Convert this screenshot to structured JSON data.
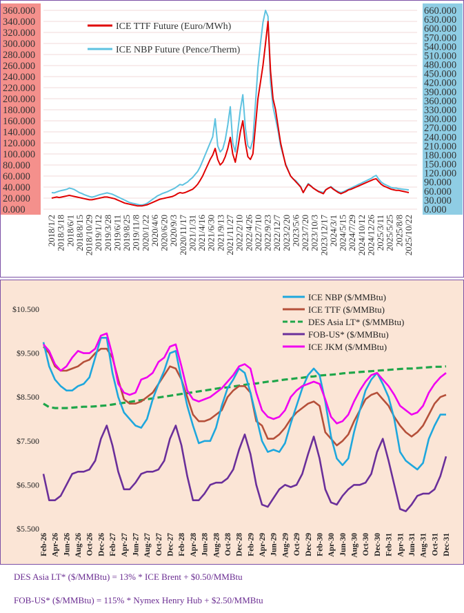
{
  "chart_data": [
    {
      "type": "line",
      "title": "",
      "series": [
        {
          "name": "ICE TTF Future (Euro/MWh)",
          "color": "#e00000",
          "axis": "left",
          "values": [
            20,
            21,
            22,
            21,
            22,
            23,
            24,
            25,
            24,
            23,
            22,
            21,
            20,
            19,
            18,
            17,
            17,
            18,
            19,
            20,
            21,
            22,
            22,
            21,
            20,
            19,
            17,
            15,
            13,
            11,
            10,
            9,
            8,
            7,
            6,
            6,
            6,
            7,
            8,
            10,
            12,
            14,
            16,
            18,
            19,
            20,
            21,
            22,
            23,
            25,
            28,
            30,
            29,
            30,
            32,
            34,
            36,
            40,
            45,
            52,
            60,
            70,
            80,
            90,
            98,
            110,
            90,
            80,
            85,
            95,
            110,
            130,
            100,
            85,
            110,
            140,
            160,
            120,
            95,
            90,
            100,
            150,
            200,
            230,
            260,
            300,
            340,
            250,
            200,
            180,
            150,
            120,
            100,
            80,
            70,
            60,
            55,
            50,
            45,
            40,
            30,
            38,
            45,
            42,
            38,
            35,
            32,
            30,
            28,
            35,
            38,
            40,
            36,
            33,
            30,
            28,
            30,
            32,
            35,
            36,
            38,
            40,
            42,
            44,
            46,
            48,
            50,
            52,
            54,
            55,
            50,
            45,
            42,
            40,
            38,
            36,
            35,
            34,
            34,
            33,
            32,
            31,
            30
          ]
        },
        {
          "name": "ICE NBP Future (Pence/Therm)",
          "color": "#5ec2e0",
          "axis": "right",
          "values": [
            55,
            54,
            57,
            60,
            62,
            64,
            66,
            70,
            68,
            65,
            60,
            55,
            52,
            48,
            45,
            42,
            40,
            42,
            45,
            48,
            50,
            52,
            54,
            52,
            50,
            46,
            42,
            38,
            34,
            30,
            26,
            22,
            20,
            18,
            16,
            14,
            14,
            16,
            20,
            26,
            32,
            38,
            44,
            48,
            52,
            55,
            58,
            62,
            66,
            70,
            76,
            82,
            80,
            85,
            90,
            98,
            105,
            115,
            125,
            140,
            160,
            180,
            200,
            220,
            240,
            300,
            210,
            190,
            200,
            230,
            280,
            340,
            220,
            190,
            260,
            330,
            380,
            270,
            210,
            200,
            230,
            350,
            470,
            550,
            620,
            660,
            640,
            420,
            340,
            300,
            260,
            210,
            180,
            150,
            130,
            110,
            100,
            95,
            85,
            75,
            55,
            70,
            85,
            78,
            70,
            65,
            60,
            58,
            55,
            65,
            70,
            75,
            68,
            62,
            58,
            55,
            58,
            62,
            66,
            70,
            74,
            78,
            82,
            86,
            90,
            94,
            98,
            102,
            108,
            112,
            100,
            90,
            84,
            80,
            76,
            72,
            70,
            70,
            68,
            67,
            66,
            65,
            64
          ]
        }
      ],
      "left_axis": {
        "ticks": [
          "0.000",
          "20.000",
          "40.000",
          "60.000",
          "80.000",
          "100.000",
          "120.000",
          "140.000",
          "160.000",
          "180.000",
          "200.000",
          "220.000",
          "240.000",
          "260.000",
          "280.000",
          "300.000",
          "320.000",
          "340.000",
          "360.000"
        ],
        "ylim": [
          0,
          360
        ]
      },
      "right_axis": {
        "ticks": [
          "0.000",
          "30.000",
          "60.000",
          "90.000",
          "120.000",
          "150.000",
          "180.000",
          "210.000",
          "240.000",
          "270.000",
          "300.000",
          "330.000",
          "360.000",
          "390.000",
          "420.000",
          "450.000",
          "480.000",
          "510.000",
          "540.000",
          "570.000",
          "600.000",
          "630.000",
          "660.000"
        ],
        "ylim": [
          0,
          660
        ]
      },
      "x_tick_labels": [
        "2018/1/2",
        "2018/3/18",
        "2018/6/1",
        "2018/8/15",
        "2018/10/29",
        "2019/1/12",
        "2019/3/28",
        "2019/6/11",
        "2019/8/25",
        "2019/11/8",
        "2020/1/22",
        "2020/4/6",
        "2020/6/20",
        "2020/9/3",
        "2020/11/17",
        "2021/1/31",
        "2021/4/16",
        "2021/6/30",
        "2021/9/13",
        "2021/11/27",
        "2022/2/10",
        "2022/4/26",
        "2022/7/10",
        "2022/9/23",
        "2022/12/7",
        "2023/2/20",
        "2023/5/6",
        "2023/7/20",
        "2023/10/3",
        "2023/12/17",
        "2024/3/1",
        "2024/5/15",
        "2024/7/29",
        "2024/10/12",
        "2024/12/26",
        "2025/3/11",
        "2025/5/25",
        "2025/8/8",
        "2025/10/22"
      ],
      "grid": "horizontal",
      "legend": "top-left",
      "colors": {
        "left_axis_bg": "#f4908c",
        "right_axis_bg": "#8fcde4",
        "grid": "#f0d8d8"
      }
    },
    {
      "type": "line",
      "title": "",
      "categories": [
        "Feb-26",
        "Mar-26",
        "Apr-26",
        "May-26",
        "Jun-26",
        "Jul-26",
        "Aug-26",
        "Sep-26",
        "Oct-26",
        "Nov-26",
        "Dec-26",
        "Jan-27",
        "Feb-27",
        "Mar-27",
        "Apr-27",
        "May-27",
        "Jun-27",
        "Jul-27",
        "Aug-27",
        "Sep-27",
        "Oct-27",
        "Nov-27",
        "Dec-27",
        "Jan-28",
        "Feb-28",
        "Mar-28",
        "Apr-28",
        "May-28",
        "Jun-28",
        "Jul-28",
        "Aug-28",
        "Sep-28",
        "Oct-28",
        "Nov-28",
        "Dec-28",
        "Jan-29",
        "Feb-29",
        "Mar-29",
        "Apr-29",
        "May-29",
        "Jun-29",
        "Jul-29",
        "Aug-29",
        "Sep-29",
        "Oct-29",
        "Nov-29",
        "Dec-29",
        "Jan-30",
        "Feb-30",
        "Mar-30",
        "Apr-30",
        "May-30",
        "Jun-30",
        "Jul-30",
        "Aug-30",
        "Sep-30",
        "Oct-30",
        "Nov-30",
        "Dec-30",
        "Jan-31",
        "Feb-31",
        "Mar-31",
        "Apr-31",
        "May-31",
        "Jun-31",
        "Jul-31",
        "Aug-31",
        "Sep-31",
        "Oct-31",
        "Nov-31",
        "Dec-31"
      ],
      "x_tick_labels": [
        "Feb-26",
        "Apr-26",
        "Jun-26",
        "Aug-26",
        "Oct-26",
        "Dec-26",
        "Feb-27",
        "Apr-27",
        "Jun-27",
        "Aug-27",
        "Oct-27",
        "Dec-27",
        "Feb-28",
        "Apr-28",
        "Jun-28",
        "Aug-28",
        "Oct-28",
        "Dec-28",
        "Feb-29",
        "Apr-29",
        "Jun-29",
        "Aug-29",
        "Oct-29",
        "Dec-29",
        "Feb-30",
        "Apr-30",
        "Jun-30",
        "Aug-30",
        "Oct-30",
        "Dec-30",
        "Feb-31",
        "Apr-31",
        "Jun-31",
        "Aug-31",
        "Oct-31",
        "Dec-31"
      ],
      "series": [
        {
          "name": "ICE NBP ($/MMBtu)",
          "color": "#1ea7dd",
          "dash": false,
          "values": [
            9.75,
            9.2,
            8.9,
            8.75,
            8.65,
            8.65,
            8.75,
            8.8,
            8.95,
            9.4,
            9.85,
            9.85,
            9.05,
            8.5,
            8.15,
            8.0,
            7.85,
            7.8,
            8.0,
            8.45,
            8.8,
            9.1,
            9.5,
            9.55,
            8.9,
            8.3,
            7.85,
            7.45,
            7.5,
            7.5,
            7.8,
            8.3,
            8.7,
            8.9,
            9.15,
            9.05,
            8.6,
            8.05,
            7.5,
            7.25,
            7.3,
            7.25,
            7.45,
            7.9,
            8.3,
            8.7,
            9.0,
            9.15,
            9.0,
            8.4,
            7.6,
            7.1,
            6.95,
            7.1,
            7.7,
            8.2,
            8.65,
            8.9,
            9.05,
            8.8,
            8.5,
            8.0,
            7.25,
            7.05,
            6.95,
            6.85,
            7.0,
            7.55,
            7.85,
            8.1,
            8.1
          ]
        },
        {
          "name": "ICE TTF ($/MMBtu)",
          "color": "#b5503a",
          "dash": false,
          "values": [
            9.65,
            9.5,
            9.2,
            9.1,
            9.1,
            9.15,
            9.2,
            9.3,
            9.35,
            9.5,
            9.6,
            9.6,
            9.4,
            8.9,
            8.45,
            8.35,
            8.35,
            8.4,
            8.5,
            8.6,
            8.8,
            9.0,
            9.2,
            9.15,
            8.9,
            8.5,
            8.1,
            7.95,
            7.95,
            8.0,
            8.1,
            8.2,
            8.5,
            8.65,
            8.75,
            8.75,
            8.6,
            7.95,
            7.85,
            7.55,
            7.55,
            7.65,
            7.8,
            8.0,
            8.15,
            8.25,
            8.35,
            8.4,
            8.3,
            7.7,
            7.55,
            7.4,
            7.5,
            7.65,
            7.95,
            8.2,
            8.45,
            8.55,
            8.6,
            8.45,
            8.3,
            8.05,
            7.85,
            7.7,
            7.6,
            7.7,
            7.85,
            8.1,
            8.35,
            8.5,
            8.55
          ]
        },
        {
          "name": "DES Asia LT* ($/MMBtu)",
          "color": "#1fa64a",
          "dash": true,
          "values": [
            8.35,
            8.27,
            8.25,
            8.25,
            8.25,
            8.26,
            8.27,
            8.28,
            8.28,
            8.29,
            8.3,
            8.31,
            8.33,
            8.35,
            8.37,
            8.39,
            8.41,
            8.43,
            8.45,
            8.47,
            8.49,
            8.51,
            8.53,
            8.55,
            8.57,
            8.59,
            8.61,
            8.63,
            8.65,
            8.67,
            8.69,
            8.71,
            8.72,
            8.74,
            8.76,
            8.78,
            8.8,
            8.81,
            8.83,
            8.85,
            8.86,
            8.88,
            8.9,
            8.91,
            8.93,
            8.94,
            8.96,
            8.97,
            8.99,
            9.0,
            9.01,
            9.02,
            9.04,
            9.05,
            9.06,
            9.07,
            9.08,
            9.09,
            9.1,
            9.11,
            9.12,
            9.13,
            9.14,
            9.15,
            9.15,
            9.16,
            9.17,
            9.18,
            9.19,
            9.19,
            9.2
          ]
        },
        {
          "name": "FOB-US* ($/MMBtu)",
          "color": "#6a2f9a",
          "dash": false,
          "values": [
            6.75,
            6.15,
            6.15,
            6.25,
            6.5,
            6.75,
            6.8,
            6.8,
            6.85,
            7.05,
            7.55,
            7.85,
            7.4,
            6.8,
            6.4,
            6.4,
            6.55,
            6.75,
            6.8,
            6.8,
            6.85,
            7.05,
            7.55,
            7.85,
            7.4,
            6.7,
            6.15,
            6.15,
            6.3,
            6.5,
            6.55,
            6.55,
            6.65,
            6.85,
            7.3,
            7.65,
            7.2,
            6.5,
            6.05,
            6.0,
            6.2,
            6.4,
            6.5,
            6.45,
            6.5,
            6.75,
            7.2,
            7.6,
            7.1,
            6.4,
            6.1,
            6.05,
            6.25,
            6.4,
            6.5,
            6.5,
            6.55,
            6.75,
            7.25,
            7.55,
            7.05,
            6.5,
            5.95,
            5.9,
            6.05,
            6.25,
            6.3,
            6.3,
            6.4,
            6.7,
            7.15
          ]
        },
        {
          "name": "ICE JKM ($/MMBtu)",
          "color": "#f000f0",
          "dash": false,
          "values": [
            9.7,
            9.55,
            9.25,
            9.1,
            9.2,
            9.4,
            9.55,
            9.5,
            9.5,
            9.6,
            9.9,
            9.95,
            9.45,
            8.8,
            8.6,
            8.55,
            8.6,
            8.9,
            8.95,
            9.05,
            9.3,
            9.4,
            9.65,
            9.7,
            9.2,
            8.65,
            8.45,
            8.4,
            8.45,
            8.5,
            8.6,
            8.7,
            8.85,
            9.0,
            9.2,
            9.25,
            9.15,
            8.6,
            8.2,
            8.05,
            8.0,
            8.05,
            8.2,
            8.5,
            8.65,
            8.75,
            8.8,
            8.85,
            8.8,
            8.45,
            8.05,
            7.9,
            7.95,
            8.1,
            8.4,
            8.65,
            8.85,
            9.0,
            9.05,
            8.9,
            8.75,
            8.55,
            8.3,
            8.2,
            8.1,
            8.15,
            8.3,
            8.6,
            8.8,
            8.95,
            9.05
          ]
        }
      ],
      "y_ticks": [
        "$5.500",
        "$6.500",
        "$7.500",
        "$8.500",
        "$9.500",
        "$10.500"
      ],
      "ylim": [
        5.5,
        10.5
      ],
      "grid": "off",
      "legend": "top-right",
      "colors": {
        "background": "#fbe5d6"
      }
    }
  ],
  "footnotes": {
    "des": "DES Asia LT* ($/MMBtu) = 13% * ICE Brent + $0.50/MMBtu",
    "fob": "FOB-US* ($/MMBtu) = 115% * Nymex Henry Hub + $2.50/MMBtu"
  }
}
